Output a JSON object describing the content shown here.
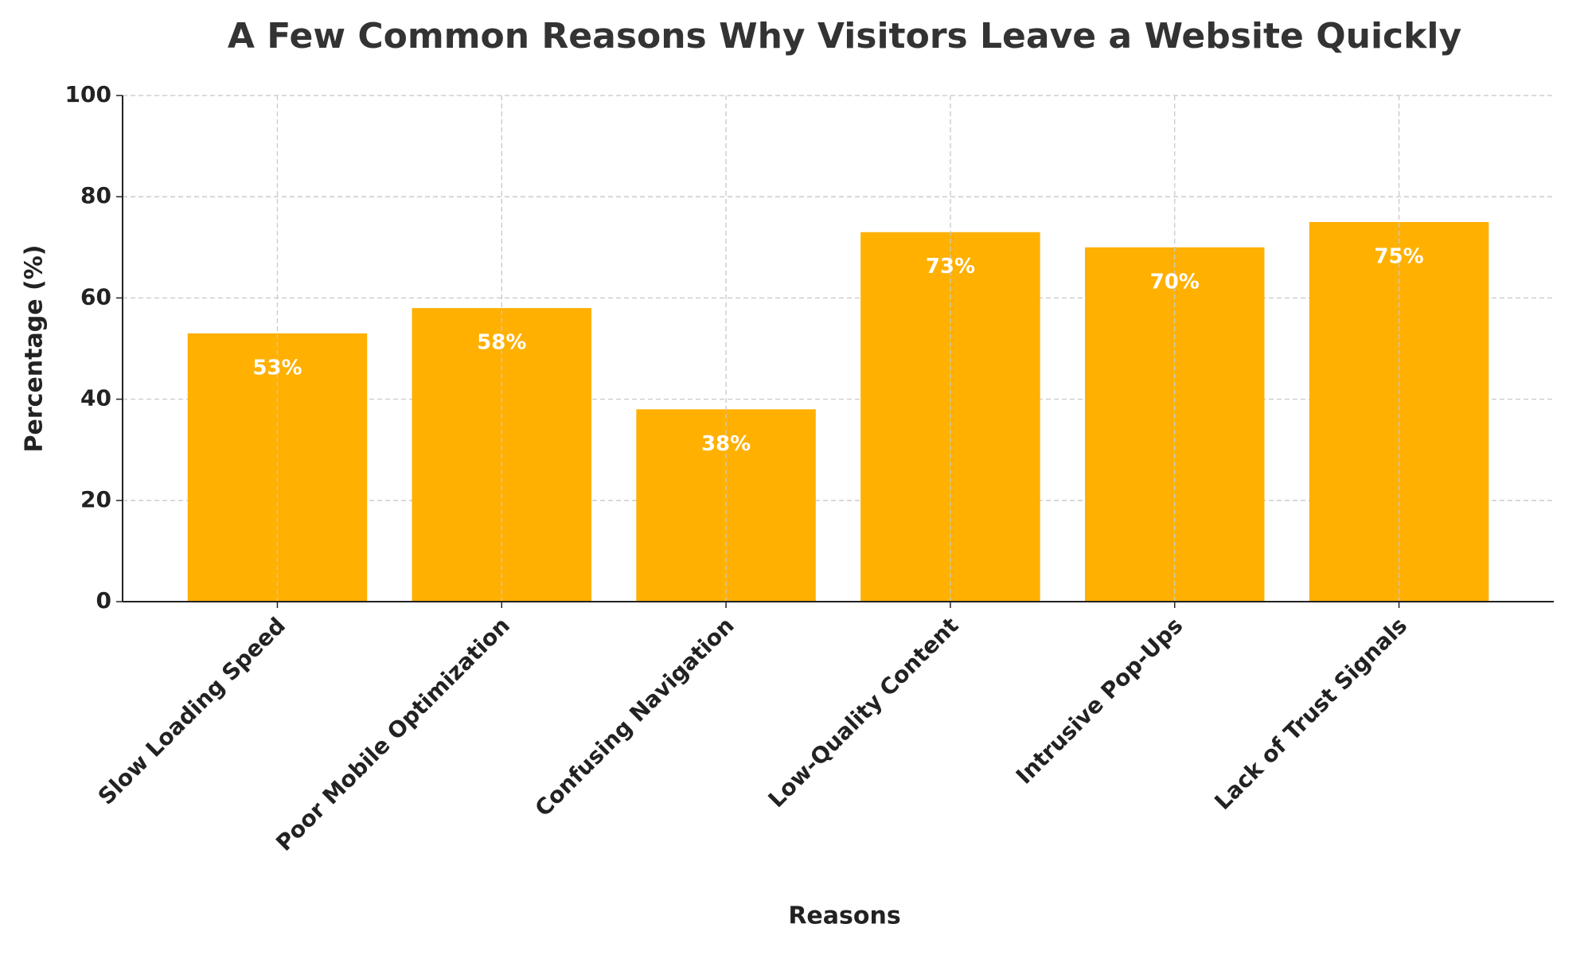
{
  "chart_data": {
    "type": "bar",
    "title": "A Few Common Reasons Why Visitors Leave a Website Quickly",
    "x_label": "Reasons",
    "y_label": "Percentage (%)",
    "categories": [
      "Slow Loading Speed",
      "Poor Mobile Optimization",
      "Confusing Navigation",
      "Low-Quality Content",
      "Intrusive Pop-Ups",
      "Lack of Trust Signals"
    ],
    "values": [
      53,
      58,
      38,
      73,
      70,
      75
    ],
    "value_labels": [
      "53%",
      "58%",
      "38%",
      "73%",
      "70%",
      "75%"
    ],
    "color": "#ffb000",
    "ylim": [
      0,
      100
    ],
    "yticks": [
      0,
      20,
      40,
      60,
      80,
      100
    ],
    "grid": true
  }
}
